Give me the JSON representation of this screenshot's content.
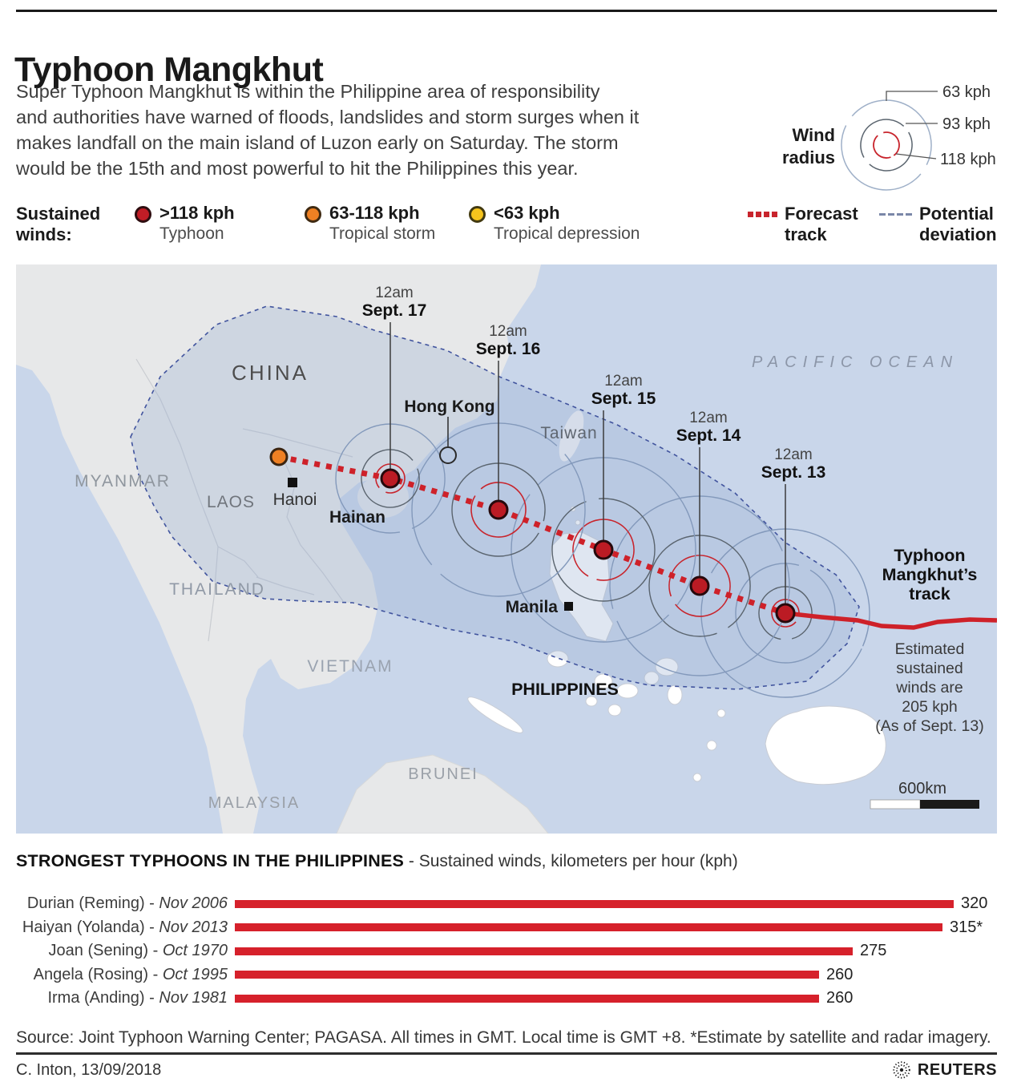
{
  "header": {
    "title": "Typhoon Mangkhut",
    "description_lines": [
      "Super Typhoon Mangkhut is within the Philippine area of responsibility",
      "and authorities have warned of floods, landslides and storm surges when it",
      "makes landfall on the main island of Luzon early on Saturday. The storm",
      "would be the 15th and most powerful to hit the Philippines this year."
    ]
  },
  "wind_radius": {
    "label_line1": "Wind",
    "label_line2": "radius",
    "rings": [
      "63 kph",
      "93 kph",
      "118 kph"
    ]
  },
  "winds_legend": {
    "title_line1": "Sustained",
    "title_line2": "winds:",
    "items": [
      {
        "value": ">118 kph",
        "name": "Typhoon",
        "color": "#c01d26"
      },
      {
        "value": "63-118 kph",
        "name": "Tropical storm",
        "color": "#ee8023"
      },
      {
        "value": "<63 kph",
        "name": "Tropical depression",
        "color": "#f6c41d"
      }
    ],
    "forecast": {
      "line1": "Forecast",
      "line2": "track"
    },
    "deviation": {
      "line1": "Potential",
      "line2": "deviation"
    }
  },
  "map": {
    "ocean": "PACIFIC OCEAN",
    "countries": {
      "china": "CHINA",
      "myanmar": "MYANMAR",
      "laos": "LAOS",
      "thailand": "THAILAND",
      "vietnam": "VIETNAM",
      "taiwan": "Taiwan",
      "philippines": "PHILIPPINES",
      "brunei": "BRUNEI",
      "malaysia": "MALAYSIA",
      "hainan": "Hainan"
    },
    "cities": {
      "hong_kong": "Hong Kong",
      "hanoi": "Hanoi",
      "manila": "Manila"
    },
    "storm_times": [
      {
        "time": "12am",
        "date": "Sept. 13"
      },
      {
        "time": "12am",
        "date": "Sept. 14"
      },
      {
        "time": "12am",
        "date": "Sept. 15"
      },
      {
        "time": "12am",
        "date": "Sept. 16"
      },
      {
        "time": "12am",
        "date": "Sept. 17"
      }
    ],
    "track_label": [
      "Typhoon",
      "Mangkhut’s",
      "track"
    ],
    "estimated": [
      "Estimated",
      "sustained",
      "winds are",
      "205 kph",
      "(As of Sept. 13)"
    ],
    "scale": "600km"
  },
  "chart": {
    "heading": "STRONGEST TYPHOONS IN THE PHILIPPINES",
    "heading_suffix": " - Sustained winds, kilometers per hour (kph)"
  },
  "chart_data": {
    "type": "bar",
    "title": "STRONGEST TYPHOONS IN THE PHILIPPINES",
    "subtitle": "Sustained winds, kilometers per hour (kph)",
    "categories": [
      "Durian (Reming) - Nov 2006",
      "Haiyan (Yolanda) - Nov 2013",
      "Joan (Sening) - Oct 1970",
      "Angela (Rosing) - Oct 1995",
      "Irma (Anding) - Nov 1981"
    ],
    "names": [
      "Durian (Reming)",
      "Haiyan (Yolanda)",
      "Joan (Sening)",
      "Angela (Rosing)",
      "Irma (Anding)"
    ],
    "dates": [
      "Nov 2006",
      "Nov 2013",
      "Oct 1970",
      "Oct 1995",
      "Nov 1981"
    ],
    "values": [
      320,
      315,
      275,
      260,
      260
    ],
    "value_labels": [
      "320",
      "315*",
      "275",
      "260",
      "260"
    ],
    "xlim": [
      0,
      320
    ],
    "bar_color": "#d6212b"
  },
  "footer": {
    "source": "Source: Joint Typhoon Warning Center; PAGASA. All times in GMT. Local time is GMT +8. *Estimate by satellite and radar imagery.",
    "credit": "C. Inton,  13/09/2018",
    "brand": "REUTERS"
  }
}
